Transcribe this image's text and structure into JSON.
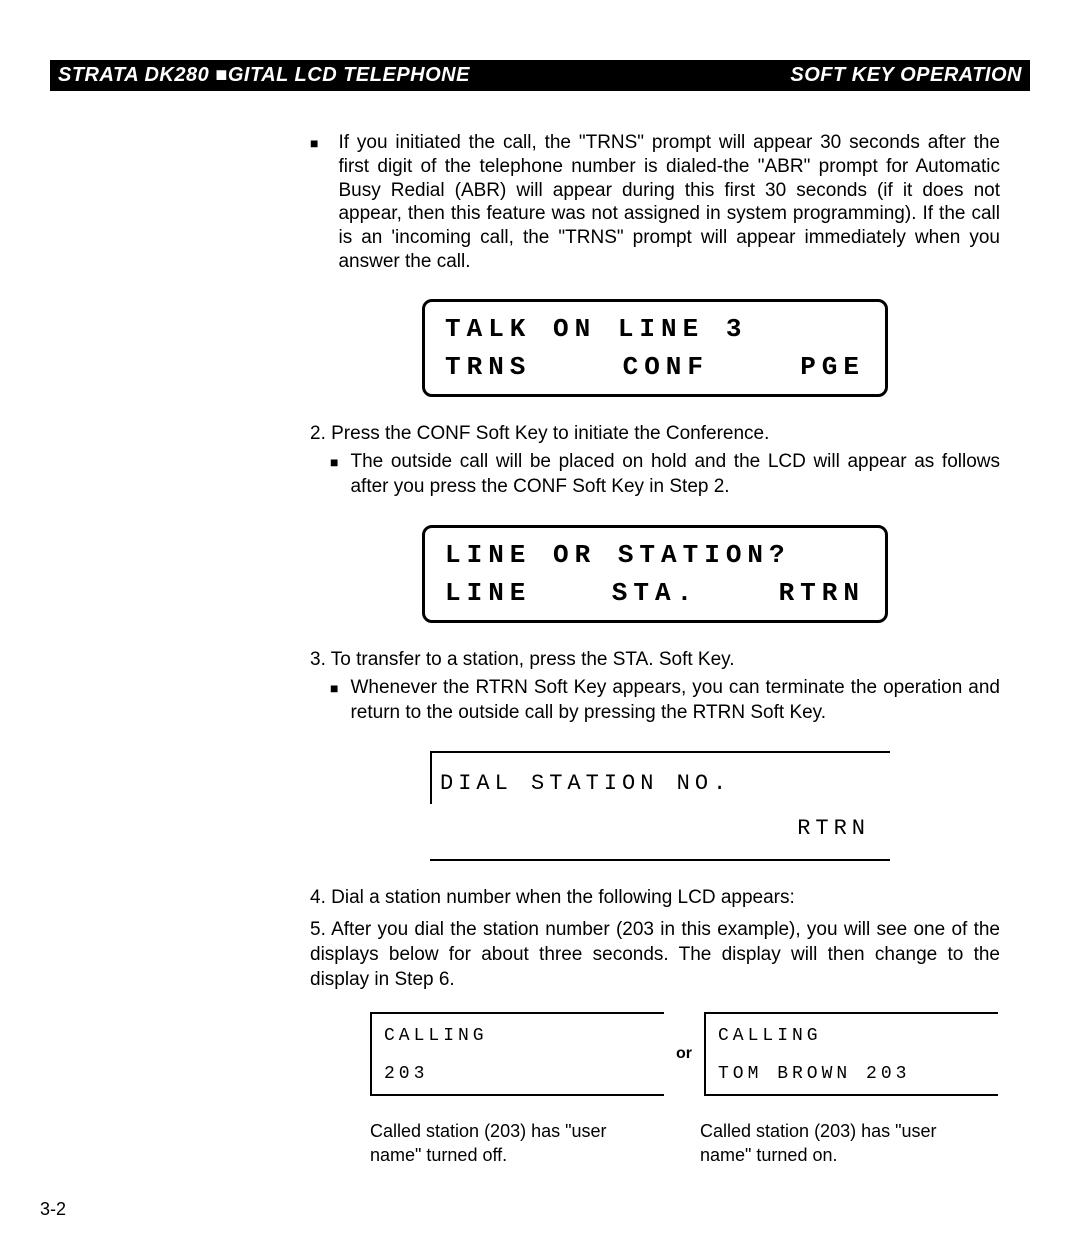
{
  "header": {
    "left": "STRATA DK280 ■GITAL LCD TELEPHONE",
    "right": "SOFT KEY OPERATION"
  },
  "para1": "If you initiated the call, the \"TRNS\" prompt will appear 30 seconds after the first digit of the telephone number is dialed-the \"ABR\" prompt for Automatic Busy Redial (ABR) will appear during this first 30 seconds (if it does not appear, then this feature was not assigned in system programming). If the call is an 'incoming call, the \"TRNS\" prompt will appear immediately when you answer the call.",
  "lcd1": {
    "row1": "TALK ON LINE 3",
    "row2a": "TRNS",
    "row2b": "CONF",
    "row2c": "PGE"
  },
  "step2": "2. Press the CONF Soft Key to initiate the Conference.",
  "step2_bullet": "The outside call will be placed on hold and the LCD will appear as follows after you press the CONF Soft Key in Step 2.",
  "lcd2": {
    "row1": "LINE OR STATION?",
    "row2a": "LINE",
    "row2b": "STA.",
    "row2c": "RTRN"
  },
  "step3": "3. To transfer to a station, press the STA. Soft Key.",
  "step3_bullet": "Whenever the RTRN Soft Key appears, you can terminate the operation and return to the outside call by pressing the RTRN Soft Key.",
  "lcd3": {
    "row1": "DIAL STATION NO.",
    "row2": "RTRN"
  },
  "step4": "4. Dial a station number when the following LCD appears:",
  "step5": "5. After you dial the station number (203 in this example), you will see one of the displays below for about three seconds. The display will then change to the display in Step 6.",
  "lcd4a": {
    "r1": "CALLING",
    "r2": "203"
  },
  "or": "or",
  "lcd4b": {
    "r1": "CALLING",
    "r2": "TOM BROWN 203"
  },
  "cap1": "Called station (203) has \"user name\" turned off.",
  "cap2": "Called station (203) has \"user name\" turned on.",
  "pagenum": "3-2"
}
